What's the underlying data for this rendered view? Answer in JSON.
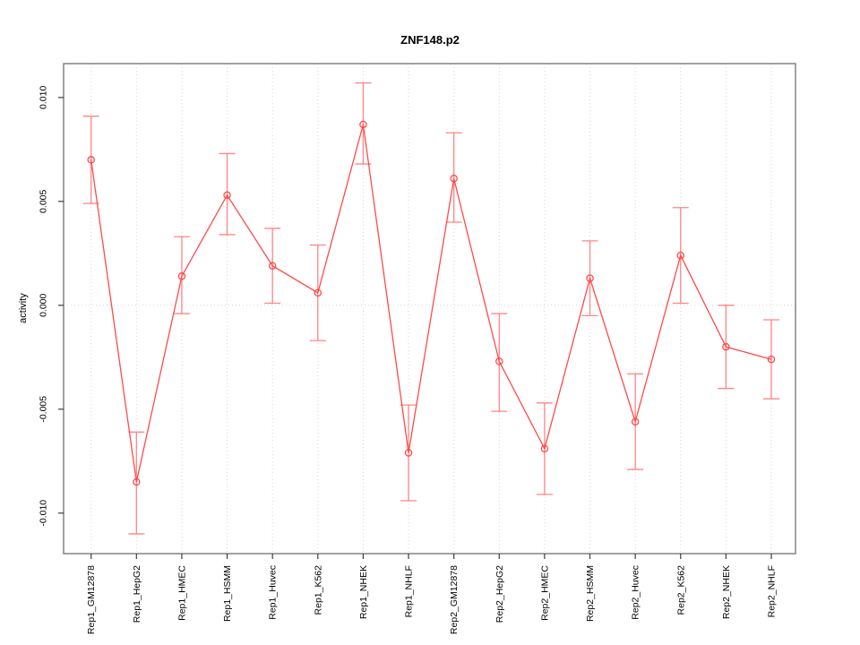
{
  "figure": {
    "title": "ZNF148.p2",
    "ylabel": "activity"
  },
  "chart_data": {
    "type": "line",
    "title": "ZNF148.p2",
    "xlabel": "",
    "ylabel": "activity",
    "legend": "none",
    "grid": "dotted vertical line per category; dotted horizontal line at y=0",
    "marker": "open-circle",
    "error_bars": true,
    "categories": [
      "Rep1_GM12878",
      "Rep1_HepG2",
      "Rep1_HMEC",
      "Rep1_HSMM",
      "Rep1_Huvec",
      "Rep1_K562",
      "Rep1_NHEK",
      "Rep1_NHLF",
      "Rep2_GM12878",
      "Rep2_HepG2",
      "Rep2_HMEC",
      "Rep2_HSMM",
      "Rep2_Huvec",
      "Rep2_K562",
      "Rep2_NHEK",
      "Rep2_NHLF"
    ],
    "values": [
      0.007,
      -0.0085,
      0.0014,
      0.0053,
      0.0019,
      0.0006,
      0.0087,
      -0.0071,
      0.0061,
      -0.0027,
      -0.0069,
      0.0013,
      -0.0056,
      0.0024,
      -0.002,
      -0.0026
    ],
    "error_low": [
      0.0049,
      -0.011,
      -0.0004,
      0.0034,
      0.0001,
      -0.0017,
      0.0068,
      -0.0094,
      0.004,
      -0.0051,
      -0.0091,
      -0.0005,
      -0.0079,
      0.0001,
      -0.004,
      -0.0045
    ],
    "error_high": [
      0.0091,
      -0.0061,
      0.0033,
      0.0073,
      0.0037,
      0.0029,
      0.0107,
      -0.0048,
      0.0083,
      -0.0004,
      -0.0047,
      0.0031,
      -0.0033,
      0.0047,
      0.0,
      -0.0007
    ],
    "yticks": [
      -0.01,
      -0.005,
      0.0,
      0.005,
      0.01
    ],
    "ytick_labels": [
      "-0.010",
      "-0.005",
      "0.000",
      "0.005",
      "0.010"
    ],
    "ylim": [
      -0.01195,
      0.01163
    ],
    "colors": {
      "series_line": "#ff4a4a",
      "marker_stroke": "#ff4a4a",
      "error_bar": "#ff8585",
      "gridline": "#d6d6d6",
      "frame": "#6f6f6f",
      "tick": "#3c3c3c",
      "text": "#000000"
    }
  }
}
